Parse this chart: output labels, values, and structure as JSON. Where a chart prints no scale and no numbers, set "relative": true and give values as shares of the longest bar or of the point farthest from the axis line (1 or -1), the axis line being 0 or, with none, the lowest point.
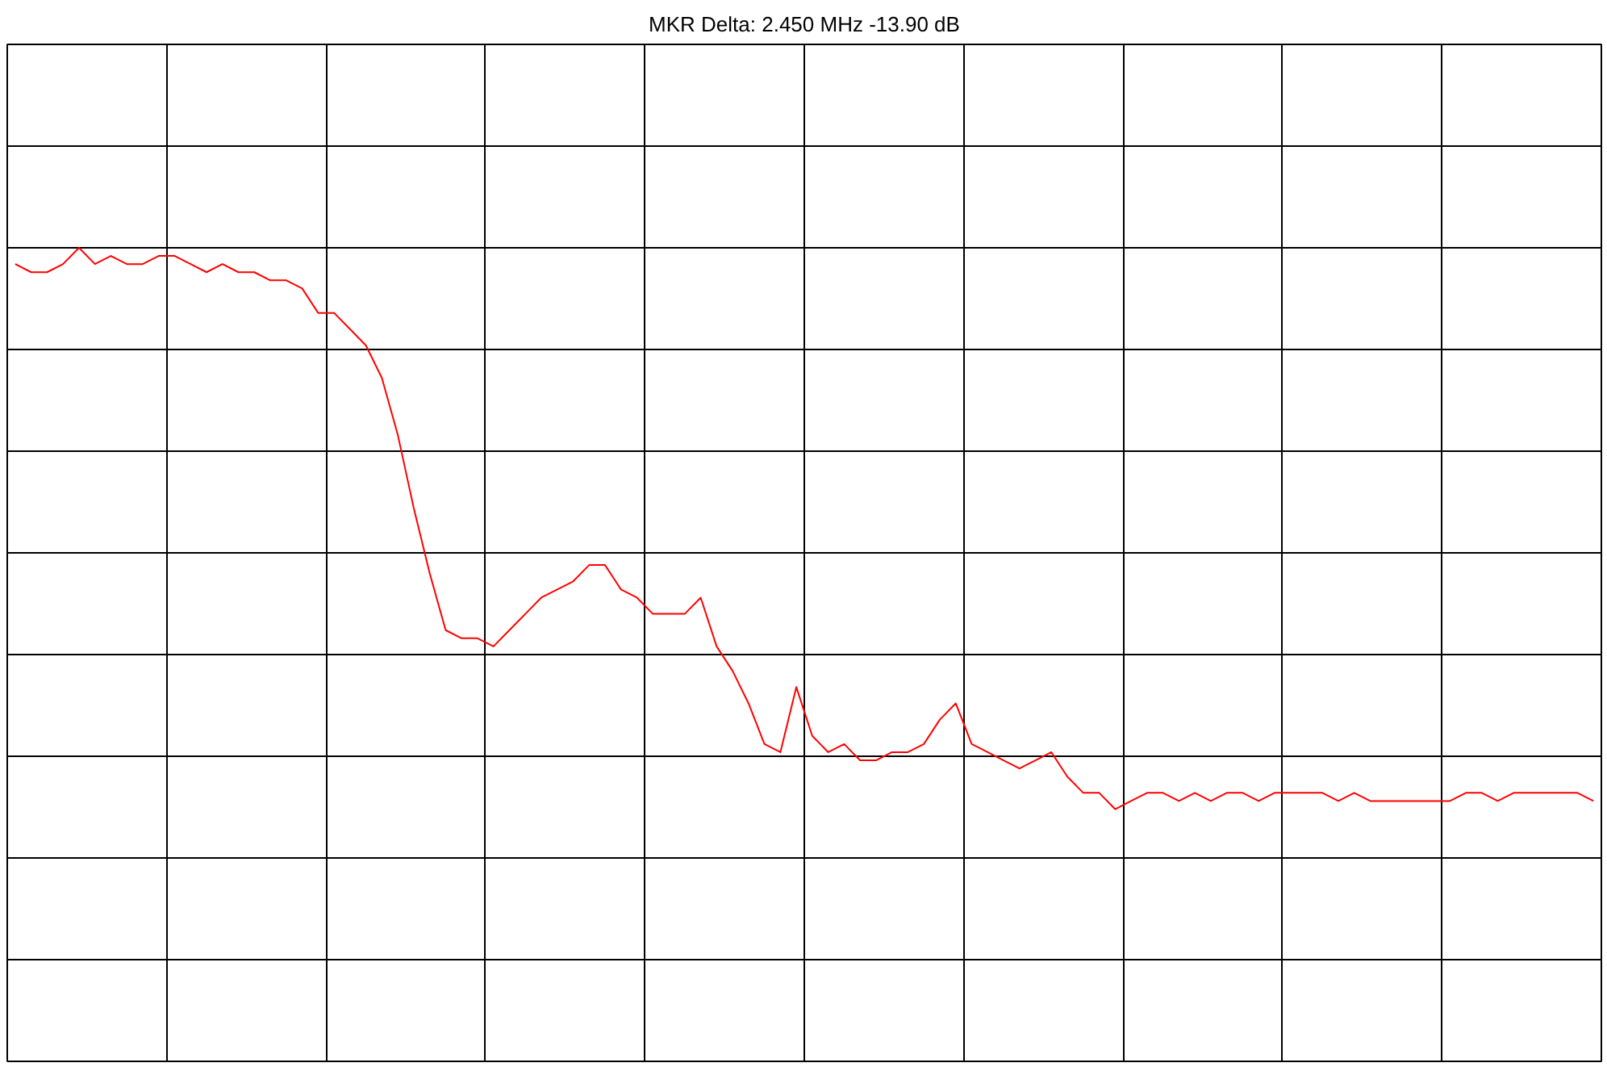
{
  "chart_data": {
    "type": "line",
    "title": "MKR Delta: 2.450 MHz -13.90 dB",
    "relative": true,
    "grid": true,
    "categories": [
      null,
      null,
      null,
      null,
      null,
      null,
      null,
      null,
      null,
      null,
      null,
      null,
      null,
      null,
      null,
      null,
      null,
      null,
      null,
      null,
      null,
      null,
      null,
      null,
      null,
      null,
      null,
      null,
      null,
      null,
      null,
      null,
      null,
      null,
      null,
      null,
      null,
      null,
      null,
      null,
      null,
      null,
      null,
      null,
      null,
      null,
      null,
      null,
      null,
      null,
      null,
      null,
      null,
      null,
      null,
      null,
      null,
      null,
      null,
      null,
      null,
      null,
      null,
      null,
      null,
      null,
      null,
      null,
      null,
      null,
      null,
      null,
      null,
      null,
      null,
      null,
      null,
      null,
      null,
      null,
      null,
      null,
      null,
      null,
      null,
      null,
      null,
      null,
      null,
      null,
      null,
      null,
      null,
      null,
      null,
      null,
      null,
      null,
      null,
      null
    ],
    "series": [
      {
        "color": "#ff0000",
        "values": [
          0.98,
          0.97,
          0.97,
          0.98,
          1,
          0.98,
          0.99,
          0.98,
          0.98,
          0.99,
          0.99,
          0.98,
          0.97,
          0.98,
          0.97,
          0.97,
          0.96,
          0.96,
          0.95,
          0.92,
          0.92,
          0.9,
          0.88,
          0.84,
          0.77,
          0.68,
          0.6,
          0.53,
          0.52,
          0.52,
          0.51,
          0.53,
          0.55,
          0.57,
          0.58,
          0.59,
          0.61,
          0.61,
          0.58,
          0.57,
          0.55,
          0.55,
          0.55,
          0.57,
          0.51,
          0.48,
          0.44,
          0.39,
          0.38,
          0.46,
          0.4,
          0.38,
          0.39,
          0.37,
          0.37,
          0.38,
          0.38,
          0.39,
          0.42,
          0.44,
          0.39,
          0.38,
          0.37,
          0.36,
          0.37,
          0.38,
          0.35,
          0.33,
          0.33,
          0.31,
          0.32,
          0.33,
          0.33,
          0.32,
          0.33,
          0.32,
          0.33,
          0.33,
          0.32,
          0.33,
          0.33,
          0.33,
          0.33,
          0.32,
          0.33,
          0.32,
          0.32,
          0.32,
          0.32,
          0.32,
          0.32,
          0.33,
          0.33,
          0.32,
          0.33,
          0.33,
          0.33,
          0.33,
          0.33,
          0.32
        ]
      }
    ]
  }
}
